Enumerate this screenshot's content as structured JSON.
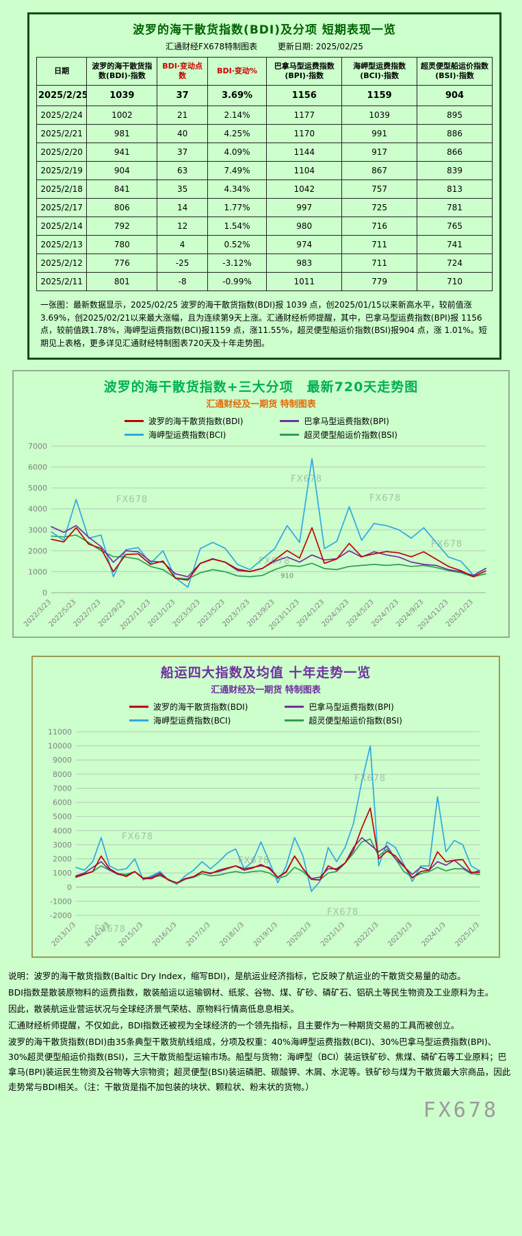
{
  "page": {
    "watermark": "FX678",
    "background": "#ccffcc"
  },
  "table_panel": {
    "title": "波罗的海干散货指数(BDI)及分项 短期表现一览",
    "subtitle_left": "汇通财经FX678特制图表",
    "subtitle_right": "更新日期: 2025/02/25",
    "columns": [
      "日期",
      "波罗的海干散货指数(BDI)·指数",
      "BDI·变动点数",
      "BDI·变动%",
      "巴拿马型运费指数(BPI)·指数",
      "海岬型运费指数(BCI)·指数",
      "超灵便型船运价指数(BSI)·指数"
    ],
    "red_columns": [
      2,
      3
    ],
    "rows": [
      [
        "2025/2/25",
        "1039",
        "37",
        "3.69%",
        "1156",
        "1159",
        "904"
      ],
      [
        "2025/2/24",
        "1002",
        "21",
        "2.14%",
        "1177",
        "1039",
        "895"
      ],
      [
        "2025/2/21",
        "981",
        "40",
        "4.25%",
        "1170",
        "991",
        "886"
      ],
      [
        "2025/2/20",
        "941",
        "37",
        "4.09%",
        "1144",
        "917",
        "866"
      ],
      [
        "2025/2/19",
        "904",
        "63",
        "7.49%",
        "1104",
        "867",
        "839"
      ],
      [
        "2025/2/18",
        "841",
        "35",
        "4.34%",
        "1042",
        "757",
        "813"
      ],
      [
        "2025/2/17",
        "806",
        "14",
        "1.77%",
        "997",
        "725",
        "781"
      ],
      [
        "2025/2/14",
        "792",
        "12",
        "1.54%",
        "980",
        "716",
        "765"
      ],
      [
        "2025/2/13",
        "780",
        "4",
        "0.52%",
        "974",
        "711",
        "741"
      ],
      [
        "2025/2/12",
        "776",
        "-25",
        "-3.12%",
        "983",
        "711",
        "724"
      ],
      [
        "2025/2/11",
        "801",
        "-8",
        "-0.99%",
        "1011",
        "779",
        "710"
      ]
    ],
    "footnote": "一张图：最新数据显示，2025/02/25 波罗的海干散货指数(BDI)报 1039 点，创2025/01/15以来新高水平，较前值涨3.69%，创2025/02/21以来最大涨幅，且为连续第9天上涨。汇通财经析师提醒，其中，巴拿马型运费指数(BPI)报 1156 点，较前值跌1.78%，海岬型运费指数(BCI)报1159 点，涨11.55%，超灵便型船运价指数(BSI)报904 点，涨 1.01%。短期见上表格，更多详见汇通财经特制图表720天及十年走势图。"
  },
  "chart_data": [
    {
      "type": "line",
      "title": "波罗的海干散货指数+三大分项　最新720天走势图",
      "subtitle": "汇通财经及一期货 特制图表",
      "title_color": "#00b050",
      "subtitle_color": "#e26b0a",
      "ylim": [
        0,
        7000
      ],
      "ytick_step": 1000,
      "grid": true,
      "legend_position": "top",
      "xlabel_step": 2,
      "xlabels": [
        "2022/3/23",
        "2022/5/23",
        "2022/7/23",
        "2022/9/23",
        "2022/11/23",
        "2023/1/23",
        "2023/3/23",
        "2023/5/23",
        "2023/7/23",
        "2023/9/23",
        "2023/11/23",
        "2024/1/23",
        "2024/3/23",
        "2024/5/23",
        "2024/7/23",
        "2024/9/23",
        "2024/11/23",
        "2025/1/23"
      ],
      "series": [
        {
          "name": "波罗的海干散货指数(BDI)",
          "color": "#c00000",
          "values": [
            2550,
            2420,
            3100,
            2320,
            2110,
            1000,
            1820,
            1850,
            1350,
            1510,
            680,
            600,
            1390,
            1600,
            1460,
            1120,
            1010,
            1150,
            1560,
            2010,
            1650,
            3100,
            1400,
            1610,
            2350,
            1720,
            1850,
            1960,
            1900,
            1710,
            1950,
            1600,
            1250,
            1050,
            760,
            1039
          ]
        },
        {
          "name": "巴拿马型运费指数(BPI)",
          "color": "#7030a0",
          "values": [
            3150,
            2880,
            3200,
            2650,
            2200,
            1450,
            2000,
            1950,
            1500,
            1450,
            900,
            760,
            1400,
            1620,
            1450,
            1060,
            1010,
            1160,
            1500,
            1700,
            1460,
            1800,
            1560,
            1620,
            2000,
            1700,
            1950,
            1800,
            1700,
            1460,
            1350,
            1300,
            1100,
            1000,
            820,
            1156
          ]
        },
        {
          "name": "海岬型运费指数(BCI)",
          "color": "#2fa8e0",
          "values": [
            2900,
            2500,
            4450,
            2600,
            2750,
            760,
            2050,
            2150,
            1400,
            2000,
            700,
            260,
            2100,
            2400,
            2120,
            1350,
            1100,
            1600,
            2100,
            3200,
            2400,
            6400,
            2100,
            2450,
            4100,
            2500,
            3300,
            3200,
            3000,
            2600,
            3100,
            2400,
            1700,
            1500,
            830,
            1159
          ]
        },
        {
          "name": "超灵便型船运价指数(BSI)",
          "color": "#2e9e4f",
          "values": [
            2700,
            2660,
            2750,
            2400,
            2000,
            1720,
            1700,
            1600,
            1250,
            1100,
            700,
            660,
            950,
            1100,
            1000,
            800,
            760,
            820,
            1100,
            1300,
            1250,
            1400,
            1150,
            1100,
            1250,
            1300,
            1350,
            1300,
            1350,
            1250,
            1300,
            1200,
            1050,
            950,
            760,
            904
          ]
        }
      ],
      "annotations": [
        {
          "text": "910",
          "x_index": 19,
          "y": 700
        }
      ]
    },
    {
      "type": "line",
      "title": "船运四大指数及均值 十年走势一览",
      "subtitle": "汇通财经及一期货 特制图表",
      "title_color": "#7030a0",
      "subtitle_color": "#7030a0",
      "ylim": [
        -2000,
        11000
      ],
      "ytick_step": 1000,
      "grid": true,
      "legend_position": "top",
      "xlabel_step": 4,
      "xlabels": [
        "2013/1/3",
        "2014/1/3",
        "2015/1/3",
        "2016/1/3",
        "2017/1/3",
        "2018/1/3",
        "2019/1/3",
        "2020/1/3",
        "2021/1/3",
        "2022/1/3",
        "2023/1/3",
        "2024/1/3",
        "2025/1/3"
      ],
      "series": [
        {
          "name": "波罗的海干散货指数(BDI)",
          "color": "#c00000",
          "values": [
            700,
            900,
            1100,
            2200,
            1300,
            950,
            750,
            1100,
            600,
            600,
            900,
            500,
            300,
            600,
            750,
            1100,
            950,
            1200,
            1350,
            1500,
            1200,
            1350,
            1600,
            1300,
            700,
            1050,
            2200,
            1300,
            550,
            500,
            1500,
            1200,
            1700,
            2600,
            4200,
            5600,
            2000,
            2550,
            2200,
            1500,
            650,
            1100,
            1200,
            2500,
            1800,
            1900,
            1950,
            1050,
            1039
          ]
        },
        {
          "name": "巴拿马型运费指数(BPI)",
          "color": "#7030a0",
          "values": [
            800,
            1000,
            1400,
            1800,
            1200,
            900,
            800,
            1100,
            600,
            700,
            1000,
            500,
            300,
            600,
            700,
            1100,
            1000,
            1100,
            1300,
            1500,
            1300,
            1400,
            1500,
            1400,
            700,
            1100,
            2200,
            1300,
            600,
            700,
            1300,
            1300,
            1700,
            2800,
            3500,
            3000,
            2500,
            2900,
            2000,
            1450,
            900,
            1400,
            1200,
            1800,
            1550,
            1900,
            1400,
            1000,
            1156
          ]
        },
        {
          "name": "海岬型运费指数(BCI)",
          "color": "#2fa8e0",
          "values": [
            1400,
            1200,
            1800,
            3500,
            1500,
            1200,
            1300,
            2000,
            500,
            800,
            1100,
            500,
            200,
            800,
            1200,
            1800,
            1300,
            1800,
            2400,
            2700,
            1300,
            1800,
            3200,
            1800,
            300,
            1500,
            3500,
            2200,
            -300,
            400,
            2800,
            1800,
            2800,
            4500,
            7500,
            10000,
            1500,
            3200,
            2800,
            1600,
            400,
            1500,
            1500,
            6400,
            2500,
            3300,
            3000,
            1500,
            1159
          ]
        },
        {
          "name": "超灵便型船运价指数(BSI)",
          "color": "#2e9e4f",
          "values": [
            750,
            950,
            1100,
            1500,
            1200,
            950,
            900,
            1100,
            650,
            700,
            800,
            550,
            250,
            550,
            700,
            950,
            800,
            850,
            1000,
            1100,
            1000,
            1100,
            1150,
            1000,
            600,
            800,
            1400,
            1100,
            550,
            500,
            1000,
            1100,
            1700,
            2400,
            3200,
            3400,
            2200,
            2700,
            2000,
            1100,
            700,
            950,
            1100,
            1400,
            1150,
            1300,
            1300,
            950,
            904
          ]
        }
      ],
      "annotations": []
    }
  ],
  "notes": {
    "lines": [
      "说明：波罗的海干散货指数(Baltic Dry Index，缩写BDI)，是航运业经济指标，它反映了航运业的干散货交易量的动态。",
      "BDI指数是散装原物料的运费指数，散装船运以运输钢材、纸浆、谷物、煤、矿砂、磷矿石、铝矾土等民生物资及工业原料为主。",
      "因此，散装航运业营运状况与全球经济景气荣枯、原物料行情高低息息相关。",
      "汇通财经析师提醒，不仅如此，BDI指数还被视为全球经济的一个领先指标，且主要作为一种期货交易的工具而被创立。",
      "波罗的海干散货指数(BDI)由35条典型干散货航线组成，分项及权重：40%海岬型运费指数(BCI)、30%巴拿马型运费指数(BPI)、30%超灵便型船运价指数(BSI)，三大干散货船型运输市场。船型与货物：海岬型（BCI）装运铁矿砂、焦煤、磷矿石等工业原料；巴拿马(BPI)装运民生物资及谷物等大宗物资；超灵便型(BSI)装运磷肥、碳酸钾、木屑、水泥等。铁矿砂与煤为干散货最大宗商品，因此走势常与BDI相关。（注：干散货是指不加包装的块状、颗粒状、粉末状的货物。）"
    ]
  }
}
